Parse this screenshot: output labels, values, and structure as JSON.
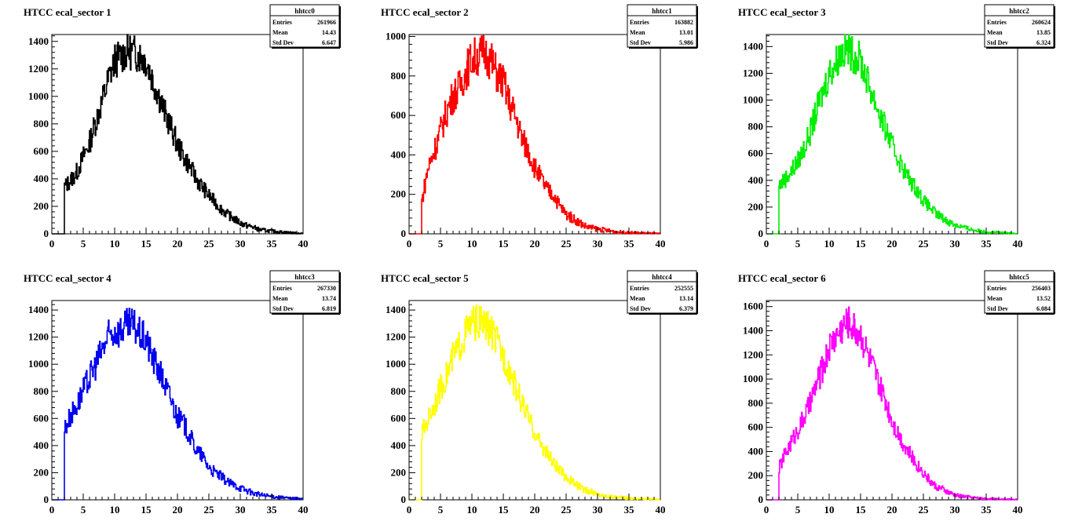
{
  "chart_data": [
    {
      "type": "histogram",
      "title": "HTCC ecal_sector 1",
      "color": "#000000",
      "xlim": [
        0,
        40
      ],
      "ylim": [
        0,
        1450
      ],
      "yticks": [
        0,
        200,
        400,
        600,
        800,
        1000,
        1200,
        1400
      ],
      "xticks": [
        0,
        5,
        10,
        15,
        20,
        25,
        30,
        35,
        40
      ],
      "stats": {
        "name": "hhtcc0",
        "rows": [
          [
            "Entries",
            "261966"
          ],
          [
            "Mean",
            "14.43"
          ],
          [
            "Std Dev",
            "6.647"
          ]
        ]
      },
      "peak": 1300,
      "start": 300,
      "x": [
        2,
        3,
        4,
        5,
        6,
        7,
        8,
        9,
        10,
        11,
        12,
        13,
        14,
        15,
        16,
        17,
        18,
        19,
        20,
        21,
        22,
        23,
        24,
        25,
        26,
        27,
        28,
        29,
        30,
        31,
        32,
        33,
        34,
        35,
        36,
        37,
        38,
        39,
        40
      ],
      "values": [
        340,
        390,
        450,
        560,
        660,
        820,
        960,
        1120,
        1260,
        1290,
        1330,
        1320,
        1300,
        1260,
        1130,
        1010,
        880,
        770,
        650,
        560,
        490,
        400,
        340,
        280,
        230,
        180,
        140,
        110,
        80,
        60,
        50,
        30,
        25,
        20,
        15,
        12,
        8,
        5,
        3
      ]
    },
    {
      "type": "histogram",
      "title": "HTCC ecal_sector 2",
      "color": "#ff0000",
      "xlim": [
        0,
        40
      ],
      "ylim": [
        0,
        1010
      ],
      "yticks": [
        0,
        200,
        400,
        600,
        800,
        1000
      ],
      "xticks": [
        0,
        5,
        10,
        15,
        20,
        25,
        30,
        35,
        40
      ],
      "stats": {
        "name": "hhtcc1",
        "rows": [
          [
            "Entries",
            "163882"
          ],
          [
            "Mean",
            "13.01"
          ],
          [
            "Std Dev",
            "5.986"
          ]
        ]
      },
      "peak": 900,
      "start": 150,
      "x": [
        2,
        3,
        4,
        5,
        6,
        7,
        8,
        9,
        10,
        11,
        12,
        13,
        14,
        15,
        16,
        17,
        18,
        19,
        20,
        21,
        22,
        23,
        24,
        25,
        26,
        27,
        28,
        29,
        30,
        31,
        32,
        33,
        34,
        35,
        36,
        37,
        38,
        39,
        40
      ],
      "values": [
        160,
        330,
        420,
        520,
        620,
        700,
        740,
        820,
        890,
        900,
        920,
        880,
        810,
        770,
        660,
        590,
        480,
        420,
        340,
        280,
        220,
        200,
        140,
        100,
        80,
        60,
        40,
        30,
        25,
        20,
        15,
        10,
        8,
        6,
        5,
        4,
        3,
        2,
        1
      ]
    },
    {
      "type": "histogram",
      "title": "HTCC ecal_sector 3",
      "color": "#00ee00",
      "xlim": [
        0,
        40
      ],
      "ylim": [
        0,
        1490
      ],
      "yticks": [
        0,
        200,
        400,
        600,
        800,
        1000,
        1200,
        1400
      ],
      "xticks": [
        0,
        5,
        10,
        15,
        20,
        25,
        30,
        35,
        40
      ],
      "stats": {
        "name": "hhtcc2",
        "rows": [
          [
            "Entries",
            "260624"
          ],
          [
            "Mean",
            "13.85"
          ],
          [
            "Std Dev",
            "6.324"
          ]
        ]
      },
      "peak": 1380,
      "start": 300,
      "x": [
        2,
        3,
        4,
        5,
        6,
        7,
        8,
        9,
        10,
        11,
        12,
        13,
        14,
        15,
        16,
        17,
        18,
        19,
        20,
        21,
        22,
        23,
        24,
        25,
        26,
        27,
        28,
        29,
        30,
        31,
        32,
        33,
        34,
        35,
        36,
        37,
        38,
        39,
        40
      ],
      "values": [
        360,
        410,
        470,
        540,
        640,
        760,
        920,
        1060,
        1200,
        1280,
        1360,
        1380,
        1330,
        1300,
        1160,
        1030,
        900,
        780,
        660,
        560,
        470,
        390,
        330,
        250,
        200,
        150,
        120,
        90,
        70,
        55,
        40,
        30,
        20,
        15,
        12,
        10,
        6,
        4,
        2
      ]
    },
    {
      "type": "histogram",
      "title": "HTCC ecal_sector 4",
      "color": "#0000ee",
      "xlim": [
        0,
        40
      ],
      "ylim": [
        0,
        1470
      ],
      "yticks": [
        0,
        200,
        400,
        600,
        800,
        1000,
        1200,
        1400
      ],
      "xticks": [
        0,
        5,
        10,
        15,
        20,
        25,
        30,
        35,
        40
      ],
      "stats": {
        "name": "hhtcc3",
        "rows": [
          [
            "Entries",
            "267330"
          ],
          [
            "Mean",
            "13.74"
          ],
          [
            "Std Dev",
            "6.819"
          ]
        ]
      },
      "peak": 1290,
      "start": 400,
      "x": [
        2,
        3,
        4,
        5,
        6,
        7,
        8,
        9,
        10,
        11,
        12,
        13,
        14,
        15,
        16,
        17,
        18,
        19,
        20,
        21,
        22,
        23,
        24,
        25,
        26,
        27,
        28,
        29,
        30,
        31,
        32,
        33,
        34,
        35,
        36,
        37,
        38,
        39,
        40
      ],
      "values": [
        520,
        620,
        700,
        800,
        900,
        1000,
        1100,
        1200,
        1240,
        1250,
        1280,
        1290,
        1220,
        1180,
        1050,
        960,
        850,
        740,
        610,
        560,
        470,
        370,
        320,
        240,
        200,
        170,
        130,
        110,
        90,
        70,
        50,
        40,
        30,
        25,
        20,
        15,
        12,
        10,
        8
      ]
    },
    {
      "type": "histogram",
      "title": "HTCC ecal_sector 5",
      "color": "#ffff00",
      "xlim": [
        0,
        40
      ],
      "ylim": [
        0,
        1470
      ],
      "yticks": [
        0,
        200,
        400,
        600,
        800,
        1000,
        1200,
        1400
      ],
      "xticks": [
        0,
        5,
        10,
        15,
        20,
        25,
        30,
        35,
        40
      ],
      "stats": {
        "name": "hhtcc4",
        "rows": [
          [
            "Entries",
            "252555"
          ],
          [
            "Mean",
            "13.14"
          ],
          [
            "Std Dev",
            "6.379"
          ]
        ]
      },
      "peak": 1310,
      "start": 400,
      "x": [
        2,
        3,
        4,
        5,
        6,
        7,
        8,
        9,
        10,
        11,
        12,
        13,
        14,
        15,
        16,
        17,
        18,
        19,
        20,
        21,
        22,
        23,
        24,
        25,
        26,
        27,
        28,
        29,
        30,
        31,
        32,
        33,
        34,
        35,
        36,
        37,
        38,
        39,
        40
      ],
      "values": [
        480,
        600,
        700,
        820,
        920,
        1050,
        1130,
        1230,
        1300,
        1310,
        1290,
        1250,
        1160,
        1060,
        960,
        830,
        710,
        600,
        500,
        410,
        340,
        270,
        210,
        170,
        130,
        100,
        70,
        60,
        40,
        30,
        25,
        20,
        15,
        12,
        10,
        8,
        6,
        4,
        2
      ]
    },
    {
      "type": "histogram",
      "title": "HTCC ecal_sector 6",
      "color": "#ff00ff",
      "xlim": [
        0,
        40
      ],
      "ylim": [
        0,
        1650
      ],
      "yticks": [
        0,
        200,
        400,
        600,
        800,
        1000,
        1200,
        1400,
        1600
      ],
      "xticks": [
        0,
        5,
        10,
        15,
        20,
        25,
        30,
        35,
        40
      ],
      "stats": {
        "name": "hhtcc5",
        "rows": [
          [
            "Entries",
            "256403"
          ],
          [
            "Mean",
            "13.52"
          ],
          [
            "Std Dev",
            "6.084"
          ]
        ]
      },
      "peak": 1500,
      "start": 200,
      "x": [
        2,
        3,
        4,
        5,
        6,
        7,
        8,
        9,
        10,
        11,
        12,
        13,
        14,
        15,
        16,
        17,
        18,
        19,
        20,
        21,
        22,
        23,
        24,
        25,
        26,
        27,
        28,
        29,
        30,
        31,
        32,
        33,
        34,
        35,
        36,
        37,
        38,
        39,
        40
      ],
      "values": [
        260,
        380,
        480,
        580,
        680,
        800,
        960,
        1090,
        1260,
        1350,
        1420,
        1480,
        1420,
        1370,
        1230,
        1090,
        940,
        820,
        660,
        550,
        450,
        370,
        290,
        230,
        160,
        110,
        90,
        60,
        40,
        30,
        25,
        18,
        12,
        10,
        8,
        6,
        5,
        3,
        2
      ]
    }
  ]
}
